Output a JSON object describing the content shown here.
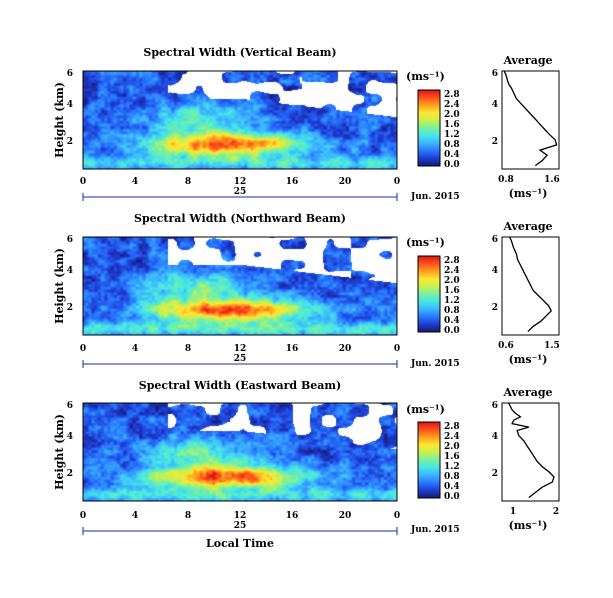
{
  "figure": {
    "date_label": "Jun. 2015",
    "day_label": "25",
    "xlabel": "Local Time",
    "unit_label": "(ms⁻¹)",
    "avg_title": "Average",
    "avg_xlabel": "(ms⁻¹)",
    "colorscale": [
      "#141c6e",
      "#1e3cd2",
      "#2878ff",
      "#3cb4ff",
      "#46e6e6",
      "#78f0a0",
      "#c8f050",
      "#ffe632",
      "#ffa01e",
      "#ff501e",
      "#dc1414"
    ]
  },
  "chart_data": [
    {
      "type": "heatmap",
      "title": "Spectral Width (Vertical Beam)",
      "ylabel": "Height (km)",
      "xlabel": "Local Time",
      "x_ticks": [
        "0",
        "4",
        "8",
        "12",
        "16",
        "20",
        "0"
      ],
      "xlim": [
        0,
        24
      ],
      "y_ticks": [
        "2",
        "4",
        "6"
      ],
      "ylim": [
        0.3,
        6.0
      ],
      "colorbar": {
        "ticks": [
          "0.0",
          "0.4",
          "0.8",
          "1.2",
          "1.6",
          "2.0",
          "2.4",
          "2.8"
        ],
        "range": [
          0,
          3.0
        ]
      },
      "average_profile": {
        "title": "Average",
        "xlabel": "(ms⁻¹)",
        "x_ticks": [
          "0.8",
          "1.6"
        ],
        "xlim": [
          0.6,
          1.8
        ],
        "y_ticks": [
          "2",
          "4",
          "6"
        ],
        "x": [
          1.3,
          1.45,
          1.55,
          1.4,
          1.75,
          1.72,
          1.6,
          1.5,
          1.4,
          1.3,
          1.2,
          1.1,
          1.0,
          0.9,
          0.85,
          0.8,
          0.75,
          0.72,
          0.7,
          0.68,
          0.66,
          0.65
        ],
        "y": [
          0.5,
          0.8,
          1.1,
          1.4,
          1.7,
          2.0,
          2.3,
          2.6,
          2.9,
          3.2,
          3.5,
          3.8,
          4.1,
          4.4,
          4.7,
          5.0,
          5.2,
          5.4,
          5.6,
          5.8,
          5.9,
          6.0
        ]
      }
    },
    {
      "type": "heatmap",
      "title": "Spectral Width (Northward Beam)",
      "ylabel": "Height (km)",
      "xlabel": "Local Time",
      "x_ticks": [
        "0",
        "4",
        "8",
        "12",
        "16",
        "20",
        "0"
      ],
      "xlim": [
        0,
        24
      ],
      "y_ticks": [
        "2",
        "4",
        "6"
      ],
      "ylim": [
        0.3,
        6.0
      ],
      "colorbar": {
        "ticks": [
          "0.0",
          "0.4",
          "0.8",
          "1.2",
          "1.6",
          "2.0",
          "2.4",
          "2.8"
        ],
        "range": [
          0,
          3.0
        ]
      },
      "average_profile": {
        "title": "Average",
        "xlabel": "(ms⁻¹)",
        "x_ticks": [
          "0.6",
          "1.5"
        ],
        "xlim": [
          0.5,
          1.6
        ],
        "y_ticks": [
          "2",
          "4",
          "6"
        ],
        "x": [
          1.0,
          1.1,
          1.25,
          1.35,
          1.45,
          1.4,
          1.3,
          1.2,
          1.1,
          1.05,
          1.0,
          0.95,
          0.9,
          0.85,
          0.8,
          0.78,
          0.75,
          0.72,
          0.7,
          0.68,
          0.66,
          0.65
        ],
        "y": [
          0.5,
          0.8,
          1.1,
          1.4,
          1.7,
          2.0,
          2.3,
          2.6,
          2.9,
          3.2,
          3.5,
          3.8,
          4.1,
          4.4,
          4.7,
          5.0,
          5.2,
          5.4,
          5.6,
          5.8,
          5.9,
          6.0
        ]
      }
    },
    {
      "type": "heatmap",
      "title": "Spectral Width (Eastward Beam)",
      "ylabel": "Height (km)",
      "xlabel": "Local Time",
      "x_ticks": [
        "0",
        "4",
        "8",
        "12",
        "16",
        "20",
        "0"
      ],
      "xlim": [
        0,
        24
      ],
      "y_ticks": [
        "2",
        "4",
        "6"
      ],
      "ylim": [
        0.3,
        6.0
      ],
      "colorbar": {
        "ticks": [
          "0.0",
          "0.4",
          "0.8",
          "1.2",
          "1.6",
          "2.0",
          "2.4",
          "2.8"
        ],
        "range": [
          0,
          3.0
        ]
      },
      "average_profile": {
        "title": "Average",
        "xlabel": "(ms⁻¹)",
        "x_ticks": [
          "1",
          "2"
        ],
        "xlim": [
          0.4,
          2.1
        ],
        "y_ticks": [
          "2",
          "4",
          "6"
        ],
        "x": [
          1.2,
          1.4,
          1.6,
          1.9,
          1.95,
          1.8,
          1.6,
          1.45,
          1.35,
          1.25,
          1.15,
          1.05,
          0.9,
          0.85,
          1.2,
          0.7,
          0.75,
          0.95,
          0.8,
          0.7,
          0.65,
          0.6
        ],
        "y": [
          0.5,
          0.8,
          1.1,
          1.4,
          1.7,
          2.0,
          2.3,
          2.6,
          2.9,
          3.2,
          3.5,
          3.8,
          4.1,
          4.4,
          4.6,
          4.8,
          5.0,
          5.2,
          5.4,
          5.6,
          5.8,
          6.0
        ]
      }
    }
  ]
}
